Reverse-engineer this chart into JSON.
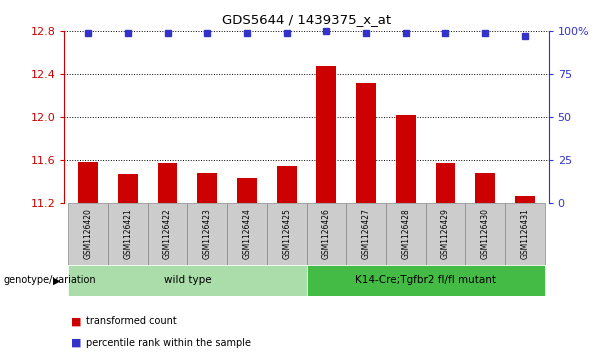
{
  "title": "GDS5644 / 1439375_x_at",
  "samples": [
    "GSM1126420",
    "GSM1126421",
    "GSM1126422",
    "GSM1126423",
    "GSM1126424",
    "GSM1126425",
    "GSM1126426",
    "GSM1126427",
    "GSM1126428",
    "GSM1126429",
    "GSM1126430",
    "GSM1126431"
  ],
  "transformed_counts": [
    11.58,
    11.47,
    11.57,
    11.48,
    11.43,
    11.55,
    12.47,
    12.32,
    12.02,
    11.57,
    11.48,
    11.27
  ],
  "percentile_ranks": [
    99,
    99,
    99,
    99,
    99,
    99,
    100,
    99,
    99,
    99,
    99,
    97
  ],
  "ylim_left": [
    11.2,
    12.8
  ],
  "ylim_right": [
    0,
    100
  ],
  "yticks_left": [
    11.2,
    11.6,
    12.0,
    12.4,
    12.8
  ],
  "yticks_right": [
    0,
    25,
    50,
    75,
    100
  ],
  "ytick_labels_right": [
    "0",
    "25",
    "50",
    "75",
    "100%"
  ],
  "bar_color": "#cc0000",
  "dot_color": "#3333cc",
  "groups": [
    {
      "label": "wild type",
      "start": 0,
      "end": 6,
      "color": "#aaddaa"
    },
    {
      "label": "K14-Cre;Tgfbr2 fl/fl mutant",
      "start": 6,
      "end": 12,
      "color": "#44bb44"
    }
  ],
  "group_label_prefix": "genotype/variation",
  "legend_items": [
    {
      "color": "#cc0000",
      "label": "transformed count"
    },
    {
      "color": "#3333cc",
      "label": "percentile rank within the sample"
    }
  ],
  "left_color": "#cc0000",
  "right_color": "#3333cc",
  "cell_bg": "#cccccc",
  "cell_border": "#888888",
  "bar_width": 0.5
}
